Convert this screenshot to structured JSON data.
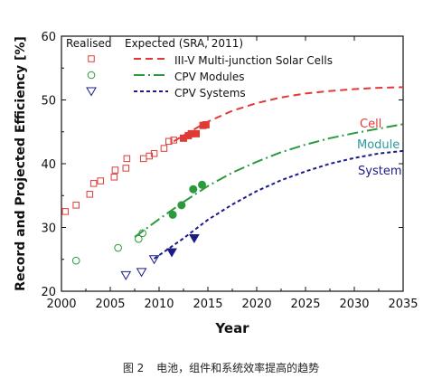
{
  "chart_data": {
    "type": "scatter",
    "xlabel": "Year",
    "ylabel": "Record and Projected Efficiency [%]",
    "xlim": [
      2000,
      2035
    ],
    "ylim": [
      20,
      60
    ],
    "xticks": [
      2000,
      2005,
      2010,
      2015,
      2020,
      2025,
      2030,
      2035
    ],
    "yticks": [
      20,
      30,
      40,
      50,
      60
    ],
    "grid": false,
    "legend_header": {
      "realised": "Realised",
      "expected": "Expected (SRA, 2011)"
    },
    "legend_placement": "top-left",
    "series": [
      {
        "name": "III-V Multi-junction Solar Cells",
        "color": "#e03a36",
        "marker": "square",
        "dash": "8,5",
        "label": "Cell",
        "realised": [
          [
            2000.4,
            32.5
          ],
          [
            2001.5,
            33.5
          ],
          [
            2002.9,
            35.2
          ],
          [
            2003.3,
            36.9
          ],
          [
            2004.0,
            37.3
          ],
          [
            2005.4,
            37.9
          ],
          [
            2005.5,
            39.0
          ],
          [
            2006.6,
            39.3
          ],
          [
            2006.7,
            40.8
          ],
          [
            2008.4,
            40.8
          ],
          [
            2009.0,
            41.2
          ],
          [
            2009.5,
            41.6
          ],
          [
            2010.5,
            42.4
          ],
          [
            2011.0,
            43.5
          ],
          [
            2011.5,
            43.7
          ]
        ],
        "filled": [
          [
            2012.5,
            44.0
          ],
          [
            2013.0,
            44.4
          ],
          [
            2013.3,
            44.7
          ],
          [
            2013.8,
            44.7
          ],
          [
            2014.5,
            46.0
          ],
          [
            2014.8,
            46.1
          ]
        ],
        "expected": [
          [
            2011.5,
            43.5
          ],
          [
            2013,
            44.9
          ],
          [
            2015,
            46.6
          ],
          [
            2017.5,
            48.3
          ],
          [
            2020,
            49.5
          ],
          [
            2022.5,
            50.4
          ],
          [
            2025,
            51.0
          ],
          [
            2027.5,
            51.4
          ],
          [
            2030,
            51.7
          ],
          [
            2032.5,
            51.9
          ],
          [
            2035,
            52.0
          ]
        ]
      },
      {
        "name": "CPV Modules",
        "color": "#2a9a3c",
        "marker": "circle",
        "dash": "12,4,2,4",
        "label": "Module",
        "label_color": "#2a9a9a",
        "realised": [
          [
            2001.5,
            24.8
          ],
          [
            2005.8,
            26.8
          ],
          [
            2007.9,
            28.2
          ],
          [
            2008.3,
            29.1
          ]
        ],
        "filled": [
          [
            2011.4,
            32.0
          ],
          [
            2012.3,
            33.5
          ],
          [
            2013.5,
            36.0
          ],
          [
            2014.4,
            36.7
          ]
        ],
        "expected": [
          [
            2007.5,
            28.5
          ],
          [
            2010,
            31.3
          ],
          [
            2012.5,
            34.0
          ],
          [
            2015,
            36.5
          ],
          [
            2017.5,
            38.6
          ],
          [
            2020,
            40.3
          ],
          [
            2022.5,
            41.8
          ],
          [
            2025,
            43.0
          ],
          [
            2027.5,
            44.0
          ],
          [
            2030,
            44.8
          ],
          [
            2032.5,
            45.5
          ],
          [
            2035,
            46.2
          ]
        ]
      },
      {
        "name": "CPV Systems",
        "color": "#1b1b8a",
        "marker": "triangle-down",
        "dash": "4,3",
        "label": "System",
        "realised": [
          [
            2006.6,
            22.5
          ],
          [
            2008.2,
            23.0
          ],
          [
            2009.5,
            25.0
          ]
        ],
        "filled": [
          [
            2011.3,
            26.1
          ],
          [
            2013.6,
            28.3
          ]
        ],
        "expected": [
          [
            2009.5,
            25.1
          ],
          [
            2012.5,
            28.3
          ],
          [
            2015,
            31.2
          ],
          [
            2017.5,
            33.6
          ],
          [
            2020,
            35.7
          ],
          [
            2022.5,
            37.4
          ],
          [
            2025,
            38.8
          ],
          [
            2027.5,
            40.0
          ],
          [
            2030,
            40.9
          ],
          [
            2032.5,
            41.6
          ],
          [
            2035,
            42.0
          ]
        ]
      }
    ]
  },
  "caption": {
    "number": "图 2",
    "text": "电池，组件和系统效率提高的趋势"
  }
}
